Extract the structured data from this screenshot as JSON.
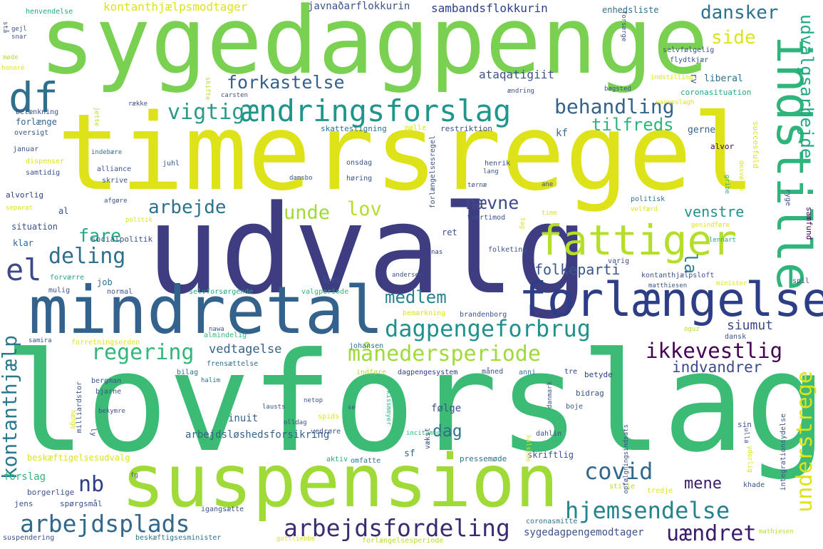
{
  "words": {
    "sygedagpenge": "sygedagpenge",
    "timersregel": "timersregel",
    "udvalg": "udvalg",
    "lovforslag": "lovforslag",
    "mindretal": "mindretal",
    "suspension": "suspension",
    "indstille": "indstille",
    "forlaengelse": "forlængelse",
    "fattiger": "fattiger",
    "aendringsforslag": "ændringsforslag",
    "df": "df",
    "dagpengeforbrug": "dagpengeforbrug",
    "maanedersperiode": "månedersperiode",
    "arbejdsplads": "arbejdsplads",
    "arbejdsfordeling": "arbejdsfordeling",
    "hjemsendelse": "hjemsendelse",
    "kontanthjaelp": "kontanthjælp",
    "understrege": "understrege",
    "udvalgsarbejde": "udvalgsarbejde",
    "behandling": "behandling",
    "vigtig": "vigtig",
    "forkastelse": "forkastelse",
    "arbejde": "arbejde",
    "regering": "regering",
    "ikkevestlig": "ikkevestlig",
    "covid": "covid",
    "uaendret": "uændret",
    "el": "el",
    "deling": "deling",
    "fare": "fare",
    "unde": "unde",
    "lov": "lov",
    "naevne": "nævne",
    "tilfreds": "tilfreds",
    "side": "side",
    "dansker": "dansker",
    "medlem": "medlem",
    "folkeparti": "folkeparti",
    "venstre": "venstre",
    "indvandrer": "indvandrer",
    "nb": "nb",
    "mene": "mene",
    "dag": "dag",
    "siumut": "siumut",
    "vedtagelse": "vedtagelse",
    "la": "la",
    "kontanthjaelpsmodtager": "kontanthjælpsmodtager",
    "javnadarflokkurin": "javnaðarflokkurin",
    "sambandsflokkurin": "sambandsflokkurin",
    "enhedsliste": "enhedsliste",
    "henvendelse": "henvendelse",
    "ataqatigiit": "ataqatigiit",
    "liberal": "liberal",
    "coronasituation": "coronasituation",
    "kf": "kf",
    "gerne": "gerne",
    "alvor": "alvor",
    "politisk": "politisk",
    "arbejdsloeshedsforsikring": "arbejdsløshedsforsikring",
    "sygedagpengemodtager": "sygedagpengemodtager",
    "inuit": "inuit",
    "foelge": "følge",
    "forslag": "forslag",
    "forlaenge": "forlænge",
    "situation": "situation",
    "al": "al",
    "klar": "klar",
    "job": "job",
    "alvorlig": "alvorlig",
    "beskaeftigelsesudvalg": "beskæftigelsesudvalg",
    "beskaeftigsesminister": "beskæftigsesminister",
    "suspendering": "suspendering",
    "forlaengelsesperiode": "forlængelsesperiode",
    "forlaengelsesregel": "forlængelsesregel",
    "selvforsoergende": "selvforsørgende",
    "kontanthjaelpsloft": "kontanthjælpsloft",
    "samfund": "samfund",
    "ryge": "ryge",
    "rv": "rv",
    "aktiv": "aktiv",
    "omfatte": "omfatte",
    "sf": "sf",
    "pressemoede": "pressemøde",
    "skriftlig": "skriftlig",
    "vaekst": "vækst",
    "integrationsydelse": "integrationsydelse",
    "khade": "khade",
    "stille": "stille",
    "tredje": "tredje",
    "coronasmitte": "coronasmitte",
    "mathiesen": "mathiesen",
    "dahlin": "dahlin",
    "boje": "boje",
    "danmark": "danmark",
    "bidrag": "bidrag",
    "betyde": "betyde",
    "tre": "tre",
    "anni": "anni",
    "maaned": "måned",
    "dagpengesystem": "dagpengesystem",
    "indfoere": "indføre",
    "bilag": "bilag",
    "halim": "halim",
    "bergman": "bergman",
    "bjarne": "bjarne",
    "milliardstor": "milliardstor",
    "frensaettelse": "frensættelse",
    "johansen": "johansen",
    "almindelig": "almindelig",
    "forretningsorden": "forretningsorden",
    "samira": "samira",
    "nawa": "nawa",
    "oguz": "oguz",
    "dansk": "dansk",
    "brandenborg": "brandenborg",
    "bemaerkning": "bemærkning",
    "matthiesen": "matthiesen",
    "minister": "minister",
    "spil": "spil",
    "normal": "normal",
    "mulig": "mulig",
    "forvaerre": "forværre",
    "aarti": "årti",
    "varig": "varig",
    "valgperiode": "valgperiode",
    "folketing": "folketing",
    "lennart": "lennart",
    "genindfoere": "genindføre",
    "tvaertimod": "tværtimod",
    "ret": "ret",
    "nas": "nas",
    "andersen": "andersen",
    "tag": "tag",
    "time": "time",
    "velfaerd": "velfærd",
    "socialpolitik": "socialpolitik",
    "separat": "separat",
    "politik": "politik",
    "afgoere": "afgøre",
    "skrive": "skrive",
    "alliance": "alliance",
    "samtidig": "samtidig",
    "dispenser": "dispenser",
    "juhl": "juhl",
    "januar": "januar",
    "indebaere": "indebære",
    "oversigt": "oversigt",
    "betaenkning": "betænkning",
    "raekke": "række",
    "carsten": "carsten",
    "skifte": "skifte",
    "jette": "jette",
    "skattestigning": "skattestigning",
    "moelle": "mølle",
    "restriktion": "restriktion",
    "damsbo": "damsbo",
    "hoering": "høring",
    "onsdag": "onsdag",
    "henrik": "henrik",
    "lang": "lang",
    "toernae": "tørnæ",
    "ane": "ane",
    "gribe": "gribe",
    "desvaerre": "desværre",
    "succesfuld": "succesfuld",
    "indstilling": "indstilling",
    "aendring": "ændring",
    "boegsted": "bøgsted",
    "forsoerge": "forsørge",
    "flydtkjaer": "flydtkjær",
    "selvfoelgelig": "selvfølgelig",
    "honore": "honoré",
    "moede": "møde",
    "gejl": "gejl",
    "snar": "snar",
    "staa": "stå",
    "sin": "sin",
    "ulla": "ulla",
    "yderlig": "yderlig",
    "opfoelgningsindsats": "opfølgningsindsats",
    "halsboe": "halsboe",
    "incitament": "incitament",
    "kissmeyer": "kissmeyer",
    "vedroere": "vedrøre",
    "spids": "spids",
    "se": "se",
    "olldag": "olldag",
    "netop": "netop",
    "lausts": "lausts",
    "bekymre": "bekymre",
    "ly": "ly",
    "haenge": "hænge",
    "borgerlige": "borgerlige",
    "jens": "jens",
    "spoergsmaal": "spørgsmål",
    "igangsaette": "igangsætte",
    "gottliebbe": "gottliebbe",
    "fg": "fg",
    "uanopslagh": "uanopslagh"
  }
}
